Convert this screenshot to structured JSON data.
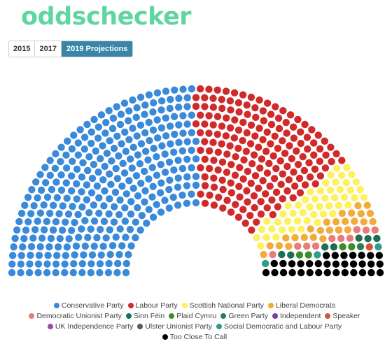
{
  "brand": {
    "name": "oddschecker"
  },
  "tabs": [
    {
      "label": "2015",
      "active": false
    },
    {
      "label": "2017",
      "active": false
    },
    {
      "label": "2019 Projections",
      "active": true
    }
  ],
  "chart_data": {
    "type": "parliament",
    "title": "",
    "total_seats": 650,
    "series": [
      {
        "name": "Conservative Party",
        "value": 326,
        "color": "#3b8ad9"
      },
      {
        "name": "Labour Party",
        "value": 188,
        "color": "#d02a2a"
      },
      {
        "name": "Scottish National Party",
        "value": 50,
        "color": "#fff15e"
      },
      {
        "name": "Liberal Democrats",
        "value": 26,
        "color": "#f3ab3c"
      },
      {
        "name": "Democratic Unionist Party",
        "value": 10,
        "color": "#e97b7b"
      },
      {
        "name": "Sinn Féin",
        "value": 7,
        "color": "#1e6e55"
      },
      {
        "name": "Plaid Cymru",
        "value": 4,
        "color": "#3c8c2c"
      },
      {
        "name": "Green Party",
        "value": 1,
        "color": "#2f7a57"
      },
      {
        "name": "Independent",
        "value": 0,
        "color": "#7a3f8f"
      },
      {
        "name": "Speaker",
        "value": 1,
        "color": "#d0553c"
      },
      {
        "name": "UK Independence Party",
        "value": 0,
        "color": "#9b4aa6"
      },
      {
        "name": "Ulster Unionist Party",
        "value": 0,
        "color": "#555b5f"
      },
      {
        "name": "Social Democratic and Labour Party",
        "value": 3,
        "color": "#2f9c8c"
      },
      {
        "name": "Too Close To Call",
        "value": 34,
        "color": "#000000"
      }
    ],
    "legend_position": "bottom"
  }
}
